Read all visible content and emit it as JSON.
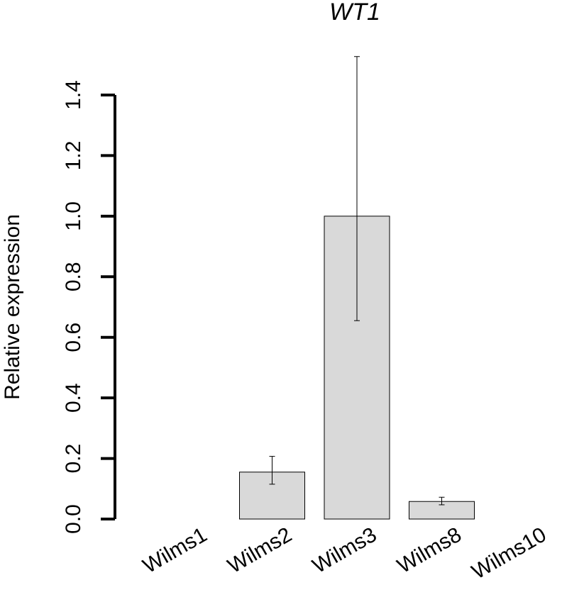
{
  "chart_data": {
    "type": "bar",
    "title": "WT1",
    "xlabel": "",
    "ylabel": "Relative expression",
    "categories": [
      "Wilms1",
      "Wilms2",
      "Wilms3",
      "Wilms8",
      "Wilms10"
    ],
    "values": [
      0.0,
      0.155,
      1.0,
      0.058,
      0.0
    ],
    "error_low": [
      0.0,
      0.115,
      0.655,
      0.047,
      0.0
    ],
    "error_high": [
      0.0,
      0.207,
      1.527,
      0.072,
      0.0
    ],
    "ylim": [
      0,
      1.4
    ],
    "yticks": [
      0.0,
      0.2,
      0.4,
      0.6,
      0.8,
      1.0,
      1.2,
      1.4
    ],
    "ytick_labels": [
      "0.0",
      "0.2",
      "0.4",
      "0.6",
      "0.8",
      "1.0",
      "1.2",
      "1.4"
    ],
    "grid": false,
    "legend": "none",
    "bar_color": "#d9d9d9"
  }
}
